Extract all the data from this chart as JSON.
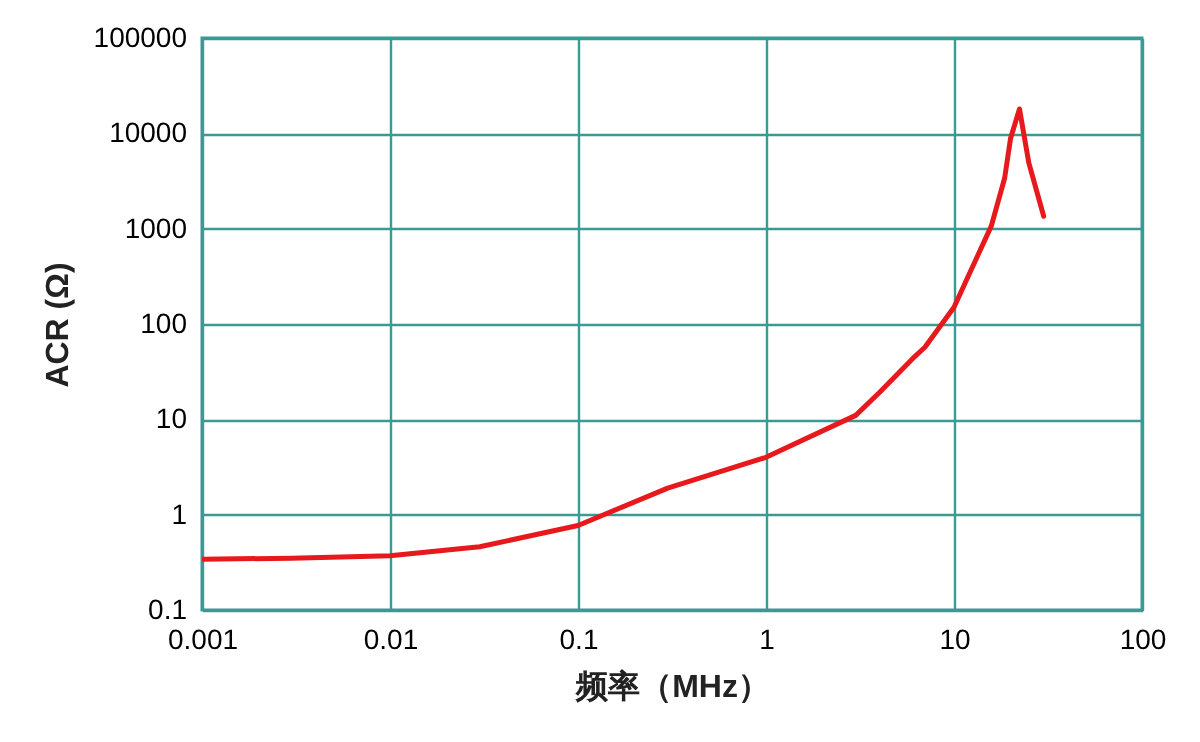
{
  "chart_data": {
    "type": "line",
    "xlabel": "频率（MHz）",
    "ylabel": "ACR (Ω)",
    "log": "xy",
    "grid": true,
    "marker": "none",
    "line_style": "solid",
    "xlim": [
      0.001,
      100
    ],
    "xticks": [
      0.001,
      0.01,
      0.1,
      1,
      10,
      100
    ],
    "ylim": [
      0.1,
      100000
    ],
    "yticks": [
      0.1,
      1,
      10,
      100,
      1000,
      10000,
      100000
    ],
    "series": [
      {
        "color": "#e8191c",
        "x": [
          0.001,
          0.003,
          0.01,
          0.03,
          0.1,
          0.3,
          1,
          3,
          4,
          6,
          7,
          10,
          15.8,
          18.6,
          20,
          22.3,
          25,
          30
        ],
        "values": [
          0.34,
          0.35,
          0.37,
          0.46,
          0.77,
          1.9,
          4,
          11,
          19,
          43,
          57,
          150,
          1070,
          3400,
          8900,
          18000,
          4900,
          1350
        ]
      }
    ]
  }
}
